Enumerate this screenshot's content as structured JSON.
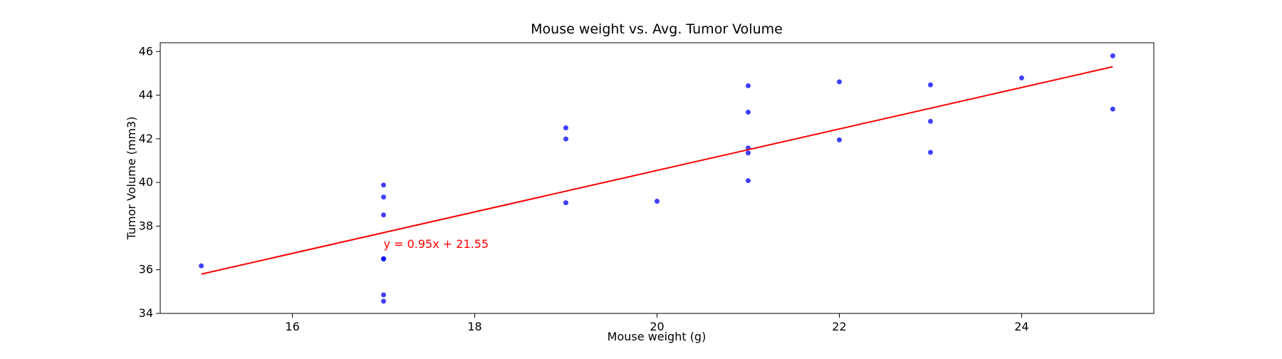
{
  "chart_data": {
    "type": "scatter",
    "title": "Mouse weight vs. Avg. Tumor Volume",
    "xlabel": "Mouse weight (g)",
    "ylabel": "Tumor Volume (mm3)",
    "xlim": [
      14.55,
      25.45
    ],
    "ylim": [
      34,
      46.4
    ],
    "xticks": [
      16,
      18,
      20,
      22,
      24
    ],
    "yticks": [
      34,
      36,
      38,
      40,
      42,
      44,
      46
    ],
    "grid": false,
    "points": [
      {
        "x": 15,
        "y": 36.18
      },
      {
        "x": 17,
        "y": 39.88
      },
      {
        "x": 17,
        "y": 39.33
      },
      {
        "x": 17,
        "y": 38.51
      },
      {
        "x": 17,
        "y": 36.51
      },
      {
        "x": 17,
        "y": 36.49
      },
      {
        "x": 17,
        "y": 34.85
      },
      {
        "x": 17,
        "y": 34.56
      },
      {
        "x": 19,
        "y": 42.5
      },
      {
        "x": 19,
        "y": 41.99
      },
      {
        "x": 19,
        "y": 39.07
      },
      {
        "x": 20,
        "y": 39.14
      },
      {
        "x": 21,
        "y": 44.43
      },
      {
        "x": 21,
        "y": 43.22
      },
      {
        "x": 21,
        "y": 41.58
      },
      {
        "x": 21,
        "y": 41.35
      },
      {
        "x": 21,
        "y": 40.08
      },
      {
        "x": 22,
        "y": 44.61
      },
      {
        "x": 22,
        "y": 41.95
      },
      {
        "x": 23,
        "y": 44.47
      },
      {
        "x": 23,
        "y": 42.8
      },
      {
        "x": 23,
        "y": 41.38
      },
      {
        "x": 24,
        "y": 44.79
      },
      {
        "x": 25,
        "y": 45.8
      },
      {
        "x": 25,
        "y": 43.36
      }
    ],
    "point_color": "#0000ff",
    "regression": {
      "slope": 0.95,
      "intercept": 21.55,
      "x_range": [
        15,
        25
      ],
      "color": "#ff0000",
      "equation_label": "y = 0.95x + 21.55",
      "label_anchor": {
        "x": 17,
        "y": 37
      }
    }
  }
}
